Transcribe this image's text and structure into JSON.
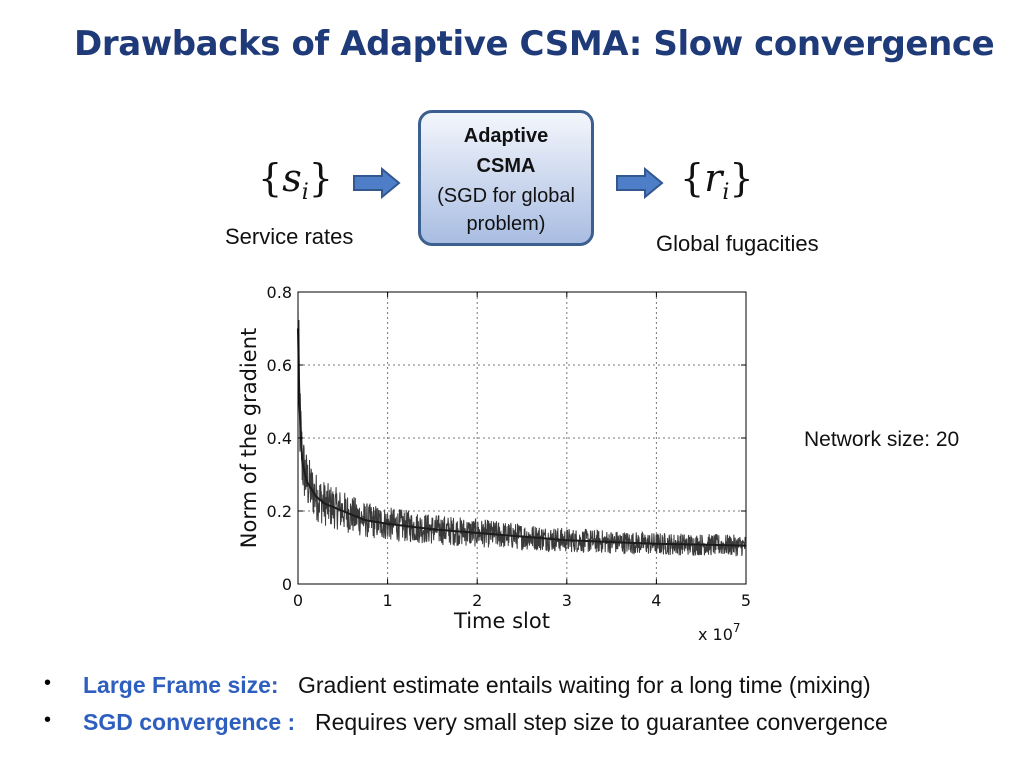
{
  "slide": {
    "title": "Drawbacks of Adaptive CSMA: Slow convergence"
  },
  "flow": {
    "input_symbol": {
      "open": "{",
      "var": "s",
      "sub": "i",
      "close": "}"
    },
    "input_caption": "Service rates",
    "box_lines": [
      "Adaptive",
      "CSMA",
      "(SGD for global",
      "problem)"
    ],
    "output_symbol": {
      "open": "{",
      "var": "r",
      "sub": "i",
      "close": "}"
    },
    "output_caption": "Global fugacities",
    "arrow_color": "#4f7ec9"
  },
  "note": "Network size: 20",
  "chart_data": {
    "type": "line",
    "ylabel": "Norm of the gradient",
    "xlabel": "Time slot",
    "x_multiplier": "x 10",
    "x_multiplier_exp": "7",
    "xlim": [
      0,
      5
    ],
    "ylim": [
      0,
      0.8
    ],
    "x_ticks": [
      "0",
      "1",
      "2",
      "3",
      "4",
      "5"
    ],
    "y_ticks": [
      "0",
      "0.2",
      "0.4",
      "0.6",
      "0.8"
    ],
    "grid": true,
    "series": [
      {
        "x": [
          0,
          0.02,
          0.05,
          0.1,
          0.2,
          0.3,
          0.5,
          0.75,
          1,
          1.5,
          2,
          2.5,
          3,
          3.5,
          4,
          4.5,
          5
        ],
        "values": [
          0.7,
          0.45,
          0.33,
          0.28,
          0.24,
          0.22,
          0.2,
          0.175,
          0.165,
          0.15,
          0.14,
          0.13,
          0.12,
          0.115,
          0.11,
          0.108,
          0.105
        ]
      }
    ],
    "line_color": "#3a3a3a"
  },
  "bullets": [
    {
      "label": "Large Frame size:",
      "text": "Gradient estimate entails waiting for a long time (mixing)"
    },
    {
      "label": "SGD convergence :",
      "text": "Requires very small step size to guarantee convergence"
    }
  ],
  "bullet_glyph": "•"
}
